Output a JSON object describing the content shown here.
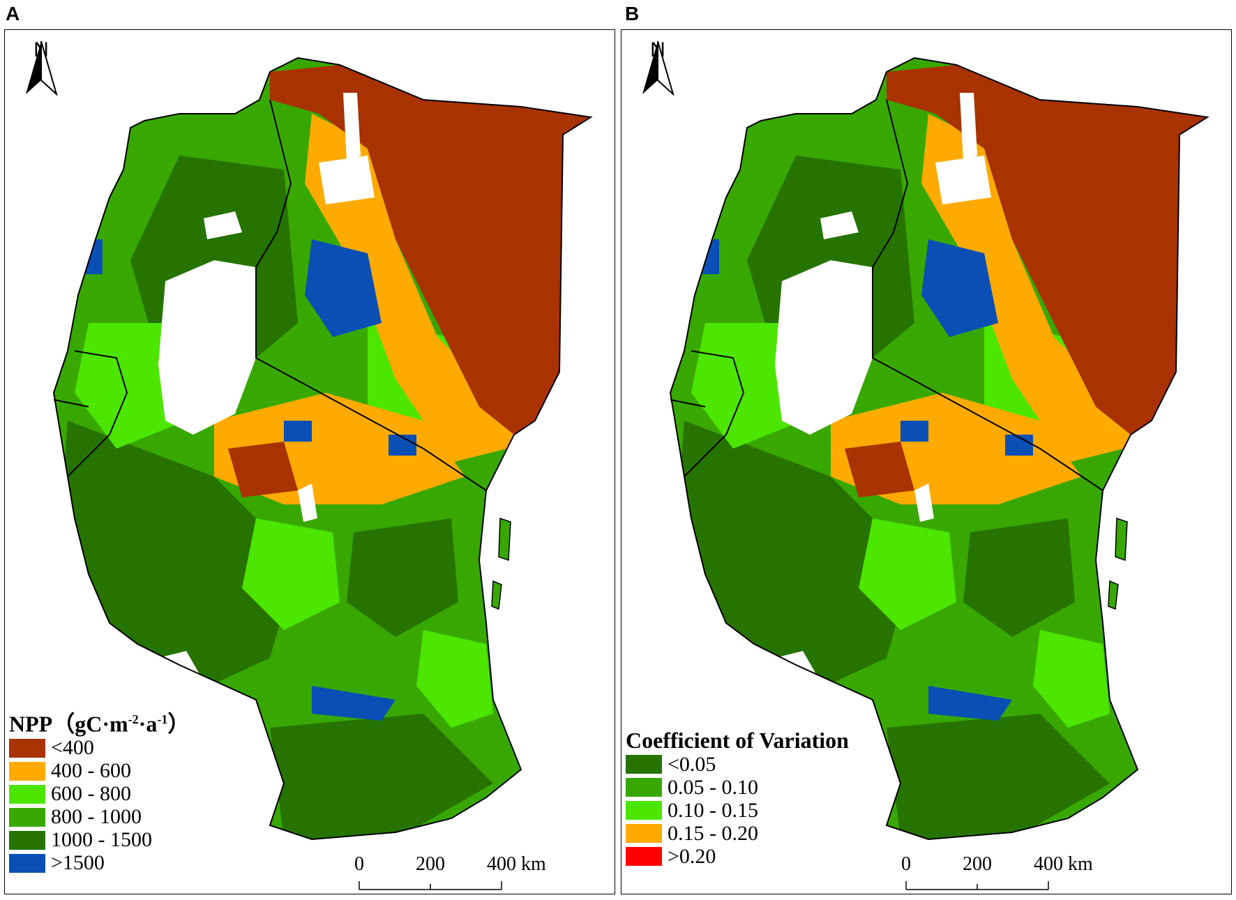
{
  "panels": [
    {
      "letter": "A",
      "north_label": "N",
      "legend": {
        "title": "NPP（gC·m",
        "title_sup1": "-2",
        "title_mid": "·a",
        "title_sup2": "-1",
        "title_end": "）",
        "items": [
          {
            "label": "<400",
            "color": "#a83200"
          },
          {
            "label": "400 - 600",
            "color": "#ffaa00"
          },
          {
            "label": "600 - 800",
            "color": "#4ce600"
          },
          {
            "label": "800 - 1000",
            "color": "#38a800"
          },
          {
            "label": "1000 - 1500",
            "color": "#267300"
          },
          {
            "label": ">1500",
            "color": "#0a4fb4"
          }
        ]
      },
      "scale": {
        "ticks": [
          "0",
          "200",
          "400"
        ],
        "unit": "km"
      }
    },
    {
      "letter": "B",
      "north_label": "N",
      "legend": {
        "title": "Coefficient of Variation",
        "items": [
          {
            "label": "<0.05",
            "color": "#267300"
          },
          {
            "label": "0.05 - 0.10",
            "color": "#38a800"
          },
          {
            "label": "0.10 - 0.15",
            "color": "#4ce600"
          },
          {
            "label": "0.15 - 0.20",
            "color": "#ffaa00"
          },
          {
            "label": ">0.20",
            "color": "#ff0000"
          }
        ]
      },
      "scale": {
        "ticks": [
          "0",
          "200",
          "400"
        ],
        "unit": "km"
      }
    }
  ]
}
